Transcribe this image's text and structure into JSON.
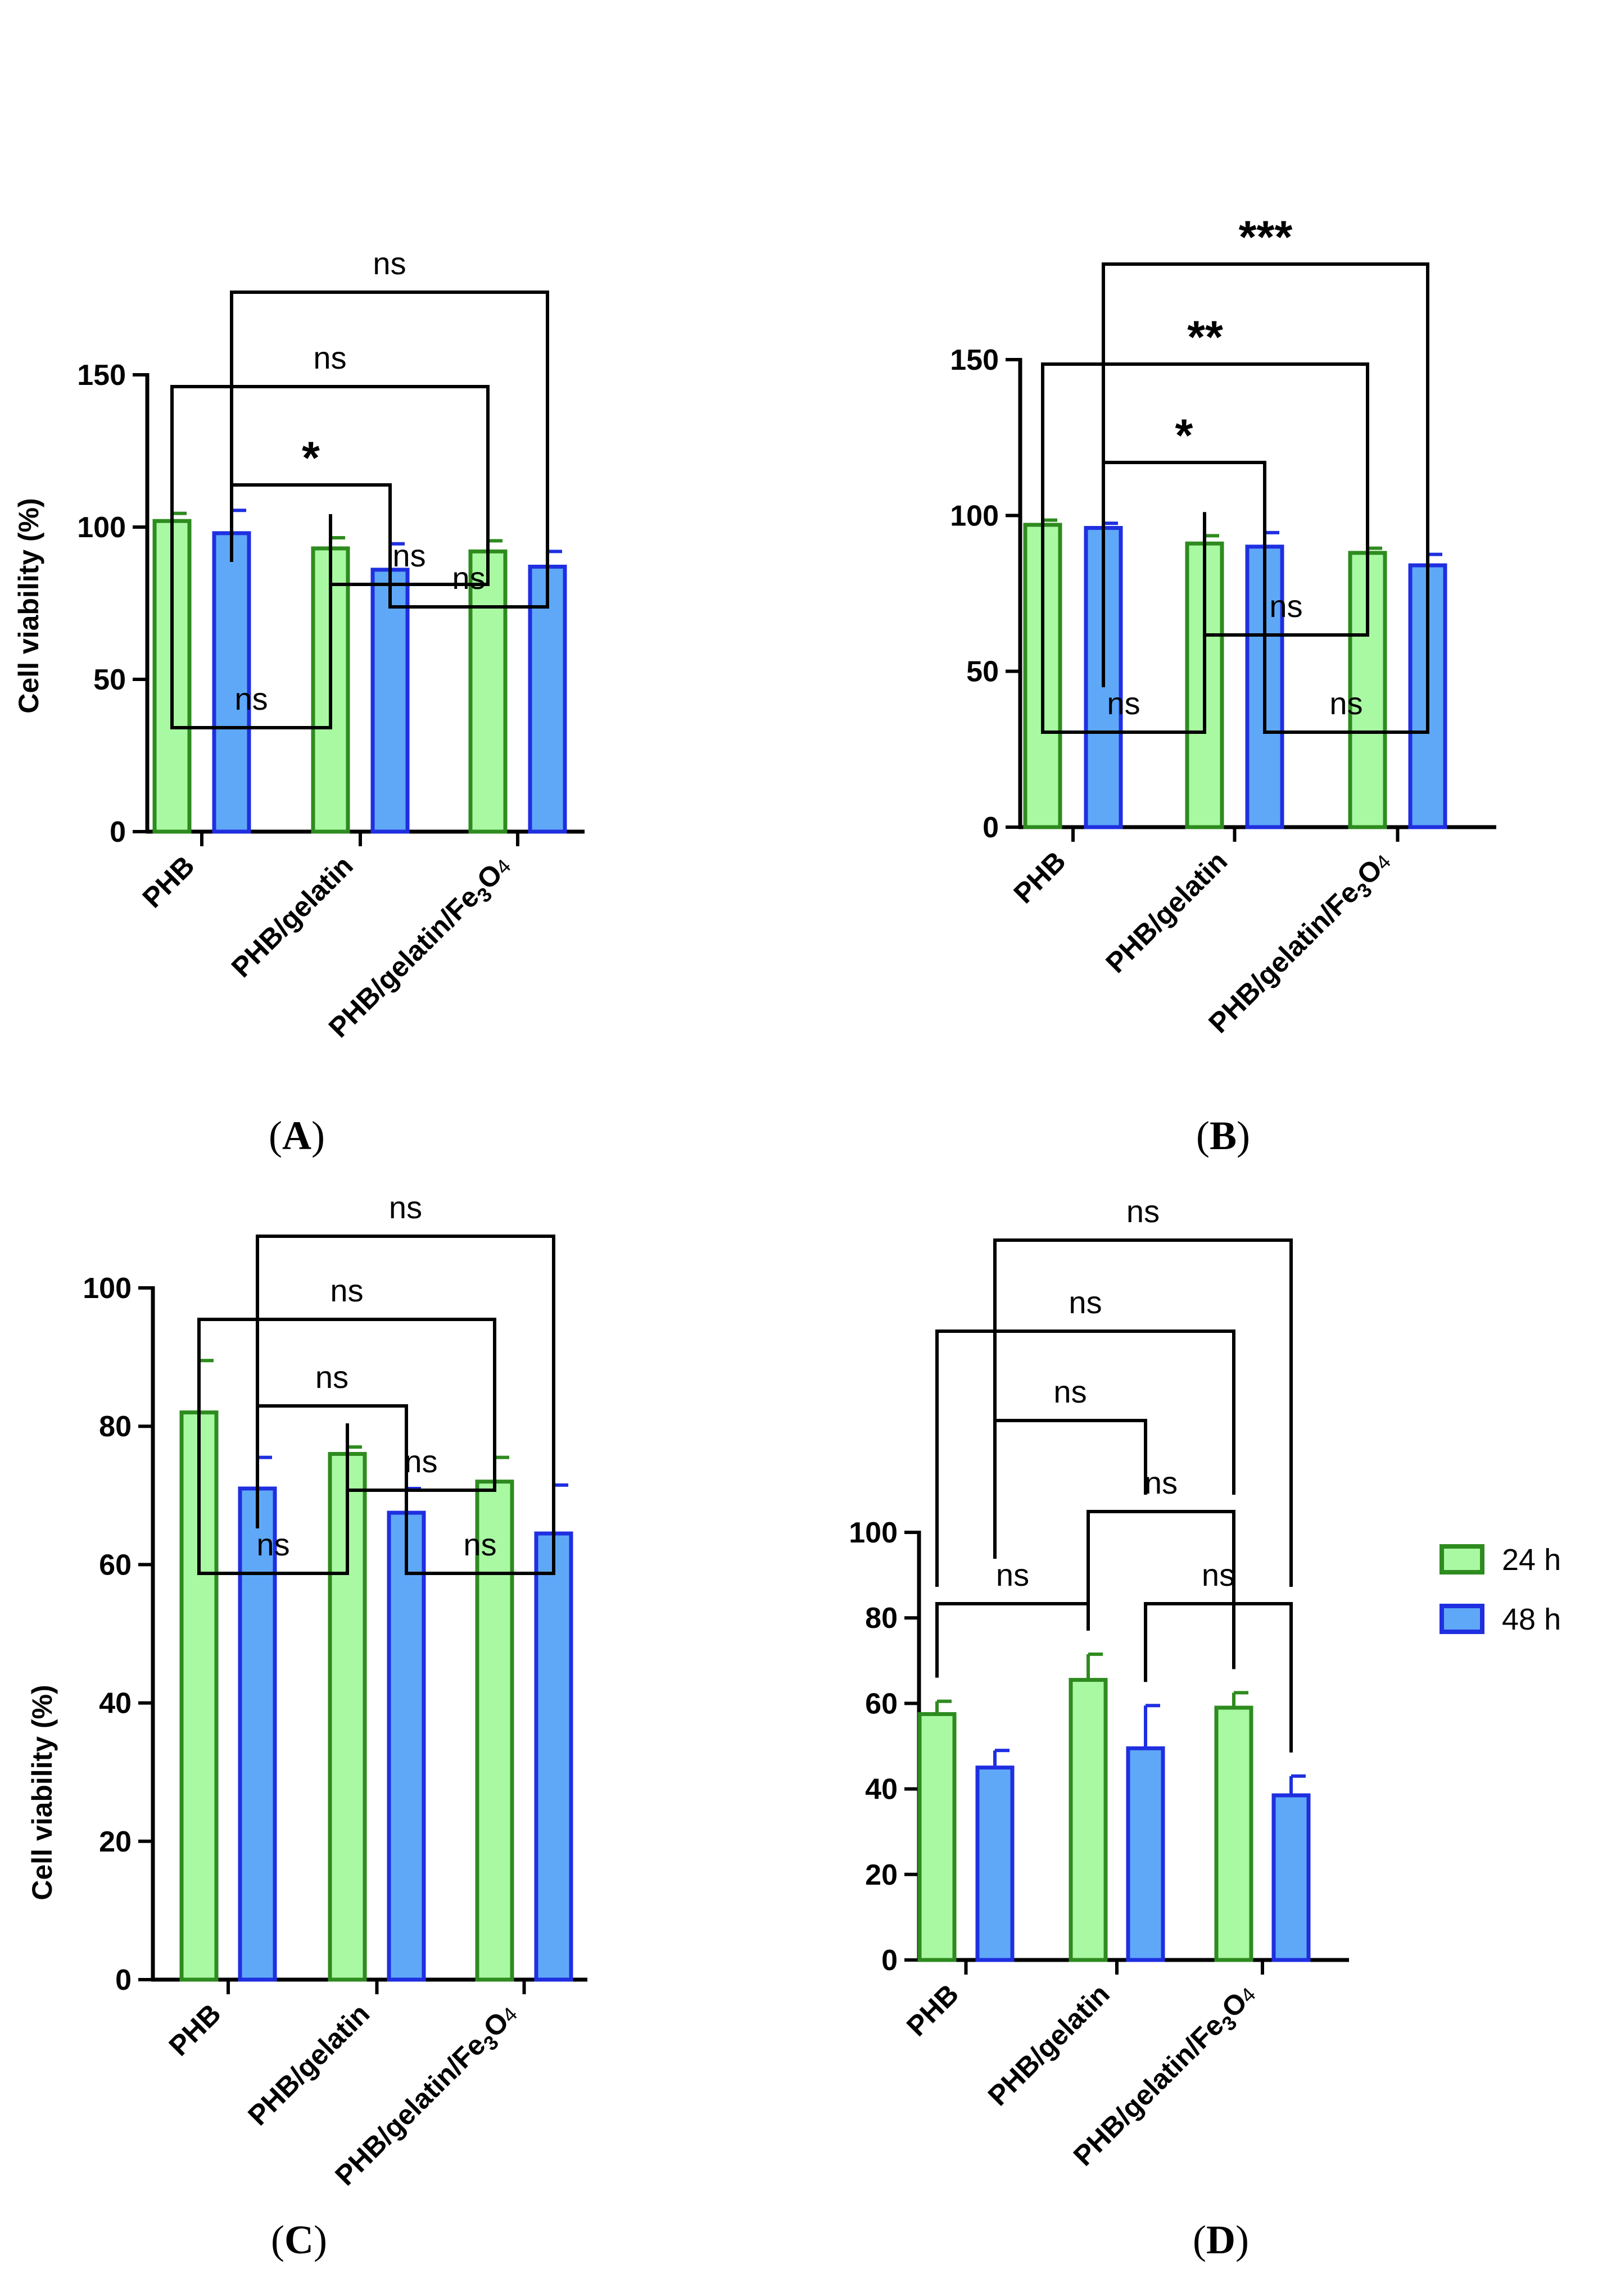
{
  "colors": {
    "h24_fill": "#a9f9a2",
    "h24_stroke": "#2e8b1f",
    "h48_fill": "#5fa8f8",
    "h48_stroke": "#1f2fe0"
  },
  "legend": {
    "items": [
      {
        "label": "24 h",
        "series": "24 h"
      },
      {
        "label": "48 h",
        "series": "48 h"
      }
    ]
  },
  "chart_data": [
    {
      "panel": "A",
      "type": "bar",
      "ylabel": "Cell viability (%)",
      "ylim": [
        0,
        150
      ],
      "yticks": [
        0,
        50,
        100,
        150
      ],
      "categories": [
        "PHB",
        "PHB/gelatin",
        "PHB/gelatin/Fe3O4"
      ],
      "series": [
        {
          "name": "24 h",
          "values": [
            102,
            93,
            92
          ],
          "errors": [
            2.5,
            3.5,
            3.5
          ]
        },
        {
          "name": "48 h",
          "values": [
            98,
            86,
            87
          ],
          "errors": [
            7.5,
            8.5,
            5
          ]
        }
      ],
      "comparisons": [
        {
          "label": "ns",
          "from": "PHB 24 h",
          "to": "PHB/gelatin 24 h"
        },
        {
          "label": "ns",
          "from": "PHB/gelatin 48 h",
          "to": "PHB/gelatin/Fe3O4 48 h"
        },
        {
          "label": "ns",
          "from": "PHB/gelatin 24 h",
          "to": "PHB/gelatin/Fe3O4 24 h"
        },
        {
          "label": "*",
          "from": "PHB 48 h",
          "to": "PHB/gelatin 48 h"
        },
        {
          "label": "ns",
          "from": "PHB 24 h",
          "to": "PHB/gelatin/Fe3O4 24 h"
        },
        {
          "label": "ns",
          "from": "PHB 48 h",
          "to": "PHB/gelatin/Fe3O4 48 h"
        }
      ]
    },
    {
      "panel": "B",
      "type": "bar",
      "ylabel": "",
      "ylim": [
        0,
        150
      ],
      "yticks": [
        0,
        50,
        100,
        150
      ],
      "categories": [
        "PHB",
        "PHB/gelatin",
        "PHB/gelatin/Fe3O4"
      ],
      "series": [
        {
          "name": "24 h",
          "values": [
            97,
            91,
            88
          ],
          "errors": [
            1.5,
            2.5,
            1.5
          ]
        },
        {
          "name": "48 h",
          "values": [
            96,
            90,
            84
          ],
          "errors": [
            1.5,
            4.5,
            3.5
          ]
        }
      ],
      "comparisons": [
        {
          "label": "ns",
          "from": "PHB 24 h",
          "to": "PHB/gelatin 24 h"
        },
        {
          "label": "ns",
          "from": "PHB/gelatin 48 h",
          "to": "PHB/gelatin/Fe3O4 48 h"
        },
        {
          "label": "ns",
          "from": "PHB/gelatin 24 h",
          "to": "PHB/gelatin/Fe3O4 24 h"
        },
        {
          "label": "*",
          "from": "PHB 48 h",
          "to": "PHB/gelatin 48 h"
        },
        {
          "label": "**",
          "from": "PHB 24 h",
          "to": "PHB/gelatin/Fe3O4 24 h"
        },
        {
          "label": "***",
          "from": "PHB 48 h",
          "to": "PHB/gelatin/Fe3O4 48 h"
        }
      ]
    },
    {
      "panel": "C",
      "type": "bar",
      "ylabel": "Cell viability (%)",
      "ylim": [
        0,
        100
      ],
      "yticks": [
        0,
        20,
        40,
        60,
        80,
        100
      ],
      "categories": [
        "PHB",
        "PHB/gelatin",
        "PHB/gelatin/Fe3O4"
      ],
      "series": [
        {
          "name": "24 h",
          "values": [
            82,
            76,
            72
          ],
          "errors": [
            7.5,
            1,
            3.5
          ]
        },
        {
          "name": "48 h",
          "values": [
            71,
            67.5,
            64.5
          ],
          "errors": [
            4.5,
            3.5,
            7
          ]
        }
      ],
      "comparisons": [
        {
          "label": "ns",
          "from": "PHB 24 h",
          "to": "PHB/gelatin 24 h"
        },
        {
          "label": "ns",
          "from": "PHB/gelatin 48 h",
          "to": "PHB/gelatin/Fe3O4 48 h"
        },
        {
          "label": "ns",
          "from": "PHB/gelatin 24 h",
          "to": "PHB/gelatin/Fe3O4 24 h"
        },
        {
          "label": "ns",
          "from": "PHB 48 h",
          "to": "PHB/gelatin 48 h"
        },
        {
          "label": "ns",
          "from": "PHB 24 h",
          "to": "PHB/gelatin/Fe3O4 24 h"
        },
        {
          "label": "ns",
          "from": "PHB 48 h",
          "to": "PHB/gelatin/Fe3O4 48 h"
        }
      ]
    },
    {
      "panel": "D",
      "type": "bar",
      "ylabel": "",
      "ylim": [
        0,
        100
      ],
      "yticks": [
        0,
        20,
        40,
        60,
        80,
        100
      ],
      "categories": [
        "PHB",
        "PHB/gelatin",
        "PHB/gelatin/Fe3O4"
      ],
      "series": [
        {
          "name": "24 h",
          "values": [
            57.5,
            65.5,
            59
          ],
          "errors": [
            3,
            6,
            3.5
          ]
        },
        {
          "name": "48 h",
          "values": [
            45,
            49.5,
            38.5
          ],
          "errors": [
            4,
            10,
            4.5
          ]
        }
      ],
      "comparisons": [
        {
          "label": "ns",
          "from": "PHB 24 h",
          "to": "PHB/gelatin 24 h"
        },
        {
          "label": "ns",
          "from": "PHB/gelatin 48 h",
          "to": "PHB/gelatin/Fe3O4 48 h"
        },
        {
          "label": "ns",
          "from": "PHB/gelatin 24 h",
          "to": "PHB/gelatin/Fe3O4 24 h"
        },
        {
          "label": "ns",
          "from": "PHB 48 h",
          "to": "PHB/gelatin 48 h"
        },
        {
          "label": "ns",
          "from": "PHB 24 h",
          "to": "PHB/gelatin/Fe3O4 24 h"
        },
        {
          "label": "ns",
          "from": "PHB 48 h",
          "to": "PHB/gelatin/Fe3O4 48 h"
        }
      ]
    }
  ]
}
